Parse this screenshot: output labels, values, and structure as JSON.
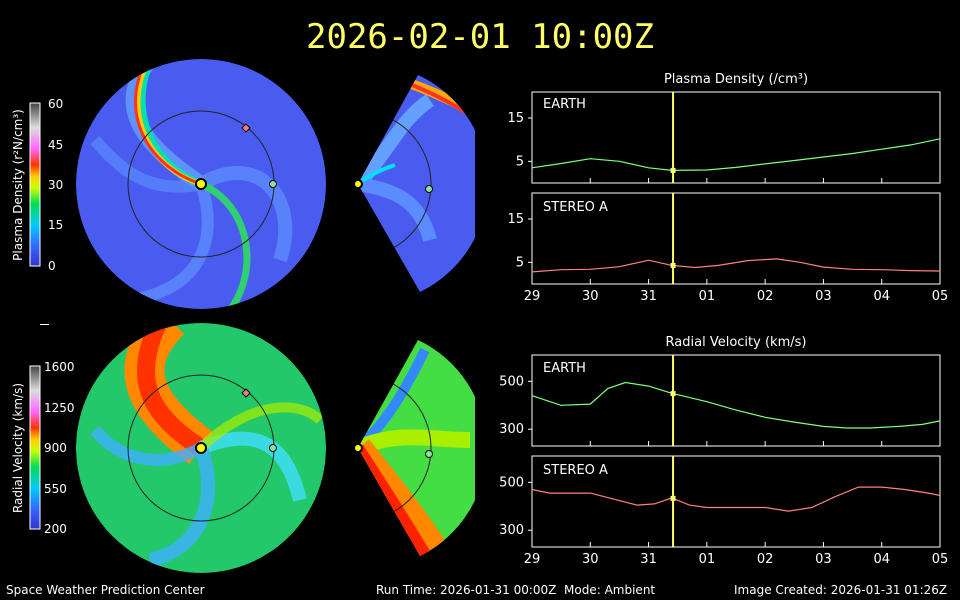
{
  "header": {
    "timestamp": "2026-02-01 10:00Z"
  },
  "colors": {
    "earth": "#7fff7f",
    "stereo_a": "#ff8080",
    "current_time_line": "#ffff66",
    "sun": "#ffff00",
    "earth_marker": "#90e0a0",
    "stereo_marker": "#ff7f7f"
  },
  "density_colorbar": {
    "label": "Plasma Density (r²N/cm³)",
    "ticks": [
      "60",
      "45",
      "30",
      "15",
      "0"
    ],
    "scale": "blue-cyan-green-yellow-red-magenta-white"
  },
  "velocity_colorbar": {
    "label": "Radial Velocity (km/s)",
    "ticks": [
      "1600",
      "1250",
      "900",
      "550",
      "200"
    ],
    "scale": "blue-cyan-green-yellow-red-magenta-white"
  },
  "panels": {
    "density_title": "Plasma Density (/cm³)",
    "velocity_title": "Radial Velocity (km/s)",
    "earth_label": "EARTH",
    "stereo_label": "STEREO A"
  },
  "chart_data": [
    {
      "type": "line",
      "title": "Plasma Density (/cm³)",
      "subpanel": "EARTH",
      "xlabel": "",
      "x_ticks": [
        "29",
        "30",
        "31",
        "01",
        "02",
        "03",
        "04",
        "05"
      ],
      "xlim": [
        0,
        7
      ],
      "ylim": [
        0,
        21
      ],
      "y_ticks": [
        5,
        15
      ],
      "current_time": 2.42,
      "series": [
        {
          "x": [
            0,
            0.5,
            1.0,
            1.5,
            2.0,
            2.4,
            3.0,
            3.5,
            4.0,
            4.5,
            5.0,
            5.5,
            6.0,
            6.5,
            7.0
          ],
          "y": [
            3.5,
            4.5,
            5.6,
            5.0,
            3.5,
            2.9,
            3.0,
            3.6,
            4.4,
            5.2,
            6.0,
            6.8,
            7.8,
            8.8,
            10.2
          ]
        }
      ]
    },
    {
      "type": "line",
      "title": "Plasma Density (/cm³)",
      "subpanel": "STEREO A",
      "xlabel": "",
      "x_ticks": [
        "29",
        "30",
        "31",
        "01",
        "02",
        "03",
        "04",
        "05"
      ],
      "xlim": [
        0,
        7
      ],
      "ylim": [
        0,
        21
      ],
      "y_ticks": [
        5,
        15
      ],
      "current_time": 2.42,
      "series": [
        {
          "x": [
            0,
            0.5,
            1.0,
            1.5,
            2.0,
            2.4,
            2.8,
            3.2,
            3.7,
            4.2,
            4.6,
            5.0,
            5.5,
            6.0,
            6.5,
            7.0
          ],
          "y": [
            2.8,
            3.3,
            3.4,
            4.0,
            5.5,
            4.3,
            3.8,
            4.3,
            5.4,
            5.8,
            5.0,
            3.9,
            3.4,
            3.3,
            3.1,
            3.0
          ]
        }
      ]
    },
    {
      "type": "line",
      "title": "Radial Velocity (km/s)",
      "subpanel": "EARTH",
      "xlabel": "",
      "x_ticks": [
        "29",
        "30",
        "31",
        "01",
        "02",
        "03",
        "04",
        "05"
      ],
      "xlim": [
        0,
        7
      ],
      "ylim": [
        230,
        610
      ],
      "y_ticks": [
        300,
        500
      ],
      "current_time": 2.42,
      "series": [
        {
          "x": [
            0,
            0.5,
            1.0,
            1.3,
            1.6,
            2.0,
            2.4,
            3.0,
            3.5,
            4.0,
            4.5,
            5.0,
            5.4,
            5.8,
            6.3,
            6.7,
            7.0
          ],
          "y": [
            440,
            400,
            405,
            470,
            495,
            480,
            450,
            415,
            380,
            350,
            330,
            312,
            305,
            305,
            312,
            320,
            335
          ]
        }
      ]
    },
    {
      "type": "line",
      "title": "Radial Velocity (km/s)",
      "subpanel": "STEREO A",
      "xlabel": "",
      "x_ticks": [
        "29",
        "30",
        "31",
        "01",
        "02",
        "03",
        "04",
        "05"
      ],
      "xlim": [
        0,
        7
      ],
      "ylim": [
        230,
        610
      ],
      "y_ticks": [
        300,
        500
      ],
      "current_time": 2.42,
      "series": [
        {
          "x": [
            0,
            0.3,
            0.6,
            1.0,
            1.4,
            1.8,
            2.1,
            2.4,
            2.7,
            3.0,
            3.5,
            4.0,
            4.4,
            4.8,
            5.2,
            5.6,
            6.0,
            6.4,
            6.8,
            7.0
          ],
          "y": [
            470,
            455,
            455,
            455,
            430,
            405,
            410,
            435,
            405,
            395,
            395,
            395,
            380,
            395,
            440,
            480,
            480,
            470,
            455,
            445
          ]
        }
      ]
    }
  ],
  "footer": {
    "org": "Space Weather Prediction Center",
    "run": "Run Time: 2026-01-31 00:00Z  Mode: Ambient",
    "created": "Image Created: 2026-01-31 01:26Z"
  }
}
